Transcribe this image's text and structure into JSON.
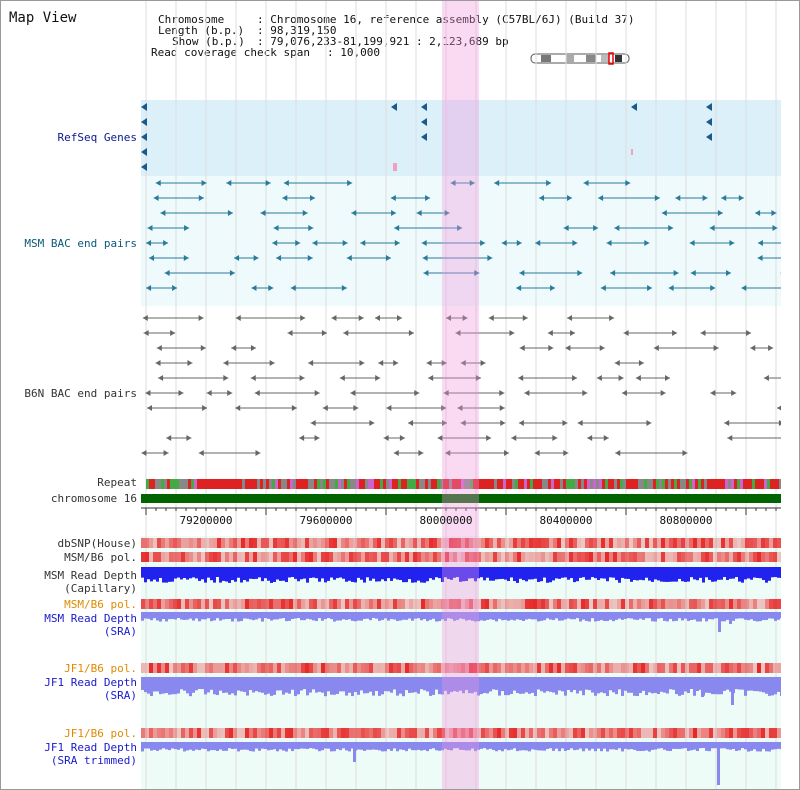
{
  "window": {
    "title": "Map View"
  },
  "header": {
    "chromosome_key": "Chromosome",
    "chromosome_value": ": Chromosome 16, reference assembly (C57BL/6J) (Build 37)",
    "length_key": "Length (b.p.)",
    "length_value": ": 98,319,150",
    "show_key": "Show (b.p.)",
    "show_value": ": 79,076,233-81,199,921 : 2,123,689 bp",
    "span_key": "Read coverage check span",
    "span_value": ": 10,000"
  },
  "tracks": {
    "refseq": "RefSeq Genes",
    "msm_bac": "MSM BAC end pairs",
    "b6n_bac": "B6N BAC end pairs",
    "repeat": "Repeat",
    "chromosome": "chromosome 16",
    "dbsnp": "dbSNP(House)",
    "msm_b6_pol": "MSM/B6 pol.",
    "msm_read_depth_cap": "MSM Read Depth\n(Capillary)",
    "msm_b6_pol_2": "MSM/B6 pol.",
    "msm_read_depth_sra": "MSM Read Depth\n(SRA)",
    "jf1_b6_pol": "JF1/B6 pol.",
    "jf1_read_depth_sra": "JF1 Read Depth\n(SRA)",
    "jf1_b6_pol_2": "JF1/B6 pol.",
    "jf1_read_depth_trim": "JF1 Read Depth\n(SRA trimmed)"
  },
  "axis": {
    "ticks": [
      "79200000",
      "79600000",
      "80000000",
      "80400000",
      "80800000"
    ]
  },
  "colors": {
    "refseq_bg": "#dcf0fa",
    "pair_bg": "#eefafc",
    "highlight": "#f5c8ef",
    "chromosome_bar": "#006400",
    "depth_blue": "#2222ee",
    "depth_light": "#8888ee",
    "pol_red": "#ee3333",
    "msm_teal": "#2a7a9a"
  }
}
